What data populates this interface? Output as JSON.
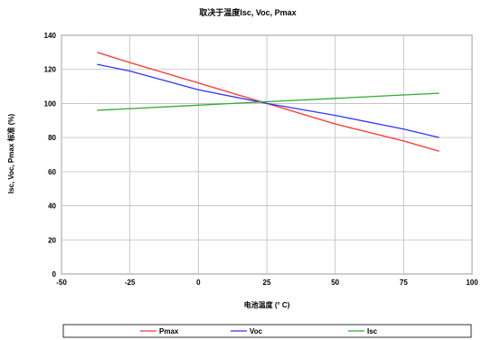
{
  "chart_data": {
    "type": "line",
    "title": "取决于温度Isc, Voc, Pmax",
    "xlabel": "电池温度 (° C)",
    "ylabel": "Isc, Voc, Pmax 标准 (%)",
    "xlim": [
      -50,
      100
    ],
    "ylim": [
      0,
      140
    ],
    "xticks": [
      -50,
      -25,
      0,
      25,
      50,
      75,
      100
    ],
    "yticks": [
      0,
      20,
      40,
      60,
      80,
      100,
      120,
      140
    ],
    "grid": true,
    "legend_position": "bottom",
    "series": [
      {
        "name": "Pmax",
        "color": "#ff3333",
        "x": [
          -37,
          -25,
          0,
          25,
          50,
          75,
          88
        ],
        "y": [
          130,
          124,
          112,
          100,
          88,
          78,
          72
        ]
      },
      {
        "name": "Voc",
        "color": "#3333ff",
        "x": [
          -37,
          -25,
          0,
          25,
          50,
          75,
          88
        ],
        "y": [
          123,
          119,
          108,
          100,
          93,
          85,
          80
        ]
      },
      {
        "name": "Isc",
        "color": "#33aa33",
        "x": [
          -37,
          0,
          25,
          50,
          75,
          88
        ],
        "y": [
          96,
          99,
          101,
          103,
          105,
          106
        ]
      }
    ]
  }
}
